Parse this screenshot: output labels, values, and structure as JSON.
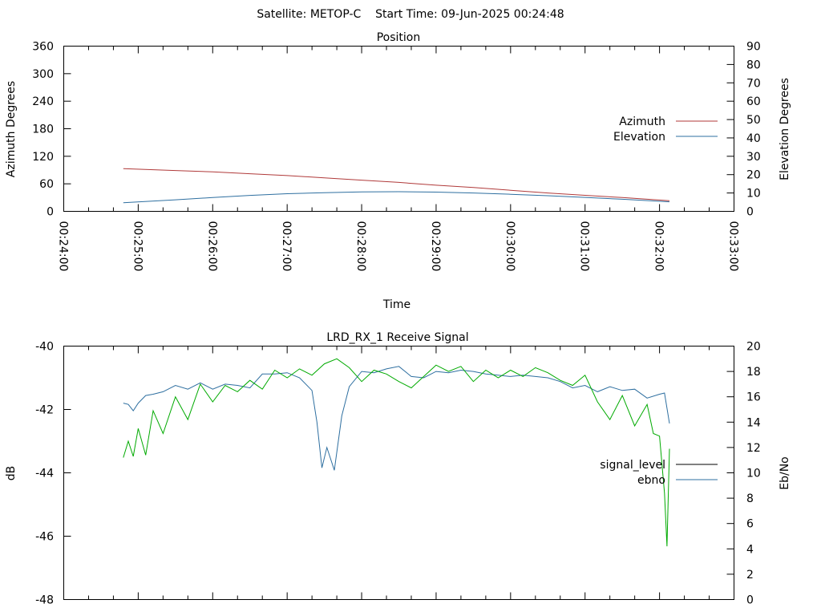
{
  "figure": {
    "title": "Satellite: METOP-C    Start Time: 09-Jun-2025 00:24:48"
  },
  "chart_data": [
    {
      "type": "line",
      "title": "Position",
      "xlabel": "Time",
      "ylabel": "Azimuth Degrees",
      "y2label": "Elevation Degrees",
      "xlim": [
        "00:24:00",
        "00:33:00"
      ],
      "ylim": [
        0,
        360
      ],
      "y2lim": [
        0,
        90
      ],
      "xticks": [
        "00:24:00",
        "00:25:00",
        "00:26:00",
        "00:27:00",
        "00:28:00",
        "00:29:00",
        "00:30:00",
        "00:31:00",
        "00:32:00",
        "00:33:00"
      ],
      "yticks": [
        0,
        60,
        120,
        180,
        240,
        300,
        360
      ],
      "y2ticks": [
        0,
        10,
        20,
        30,
        40,
        50,
        60,
        70,
        80,
        90
      ],
      "legend_position": "right",
      "series": [
        {
          "name": "Azimuth",
          "axis": "y",
          "color": "#b03a3a",
          "x": [
            "00:24:48",
            "00:25:30",
            "00:26:00",
            "00:26:30",
            "00:27:00",
            "00:27:30",
            "00:28:00",
            "00:28:30",
            "00:29:00",
            "00:29:30",
            "00:30:00",
            "00:30:30",
            "00:31:00",
            "00:31:30",
            "00:32:08"
          ],
          "y": [
            93,
            89,
            86,
            82,
            78,
            73,
            68,
            63,
            57,
            52,
            46,
            40,
            35,
            30,
            23
          ]
        },
        {
          "name": "Elevation",
          "axis": "y2",
          "color": "#2e6fa0",
          "x": [
            "00:24:48",
            "00:25:30",
            "00:26:00",
            "00:26:30",
            "00:27:00",
            "00:27:30",
            "00:28:00",
            "00:28:30",
            "00:29:00",
            "00:29:30",
            "00:30:00",
            "00:30:30",
            "00:31:00",
            "00:31:30",
            "00:32:08"
          ],
          "y": [
            4.7,
            6.3,
            7.5,
            8.7,
            9.6,
            10.2,
            10.6,
            10.7,
            10.5,
            10.0,
            9.3,
            8.5,
            7.6,
            6.6,
            5.2
          ]
        }
      ]
    },
    {
      "type": "line",
      "title": "LRD_RX_1 Receive Signal",
      "xlabel": "",
      "ylabel": "dB",
      "y2label": "Eb/No",
      "xlim": [
        "00:24:00",
        "00:33:00"
      ],
      "ylim": [
        -48,
        -40
      ],
      "y2lim": [
        0,
        20
      ],
      "yticks": [
        -48,
        -46,
        -44,
        -42,
        -40
      ],
      "y2ticks": [
        0,
        2,
        4,
        6,
        8,
        10,
        12,
        14,
        16,
        18,
        20
      ],
      "legend_position": "right",
      "series": [
        {
          "name": "signal_level",
          "axis": "y",
          "color": "#000000",
          "x": [],
          "y": []
        },
        {
          "name": "ebno",
          "axis": "y2",
          "color": "#2e6fa0",
          "x": [
            "00:24:48",
            "00:24:52",
            "00:24:56",
            "00:25:00",
            "00:25:06",
            "00:25:12",
            "00:25:20",
            "00:25:30",
            "00:25:40",
            "00:25:50",
            "00:26:00",
            "00:26:10",
            "00:26:20",
            "00:26:30",
            "00:26:40",
            "00:26:50",
            "00:27:00",
            "00:27:10",
            "00:27:20",
            "00:27:24",
            "00:27:28",
            "00:27:32",
            "00:27:38",
            "00:27:44",
            "00:27:50",
            "00:28:00",
            "00:28:10",
            "00:28:20",
            "00:28:30",
            "00:28:40",
            "00:28:50",
            "00:29:00",
            "00:29:10",
            "00:29:20",
            "00:29:30",
            "00:29:40",
            "00:29:50",
            "00:30:00",
            "00:30:10",
            "00:30:20",
            "00:30:30",
            "00:30:40",
            "00:30:50",
            "00:31:00",
            "00:31:10",
            "00:31:20",
            "00:31:30",
            "00:31:40",
            "00:31:50",
            "00:32:00",
            "00:32:04",
            "00:32:08"
          ],
          "y": [
            15.5,
            15.4,
            14.9,
            15.5,
            16.1,
            16.2,
            16.4,
            16.9,
            16.6,
            17.1,
            16.6,
            17.0,
            16.9,
            16.7,
            17.8,
            17.8,
            17.9,
            17.5,
            16.5,
            14.0,
            10.4,
            12.0,
            10.2,
            14.5,
            16.8,
            18.0,
            17.9,
            18.2,
            18.4,
            17.6,
            17.5,
            18.0,
            17.9,
            18.1,
            18.0,
            17.8,
            17.7,
            17.6,
            17.7,
            17.6,
            17.5,
            17.2,
            16.7,
            16.9,
            16.4,
            16.8,
            16.5,
            16.6,
            15.9,
            16.2,
            16.3,
            13.9
          ]
        },
        {
          "name": "",
          "axis": "y2",
          "color": "#00aa00",
          "x": [
            "00:24:48",
            "00:24:52",
            "00:24:56",
            "00:25:00",
            "00:25:06",
            "00:25:12",
            "00:25:20",
            "00:25:30",
            "00:25:40",
            "00:25:50",
            "00:26:00",
            "00:26:10",
            "00:26:20",
            "00:26:30",
            "00:26:40",
            "00:26:50",
            "00:27:00",
            "00:27:10",
            "00:27:20",
            "00:27:30",
            "00:27:40",
            "00:27:50",
            "00:28:00",
            "00:28:10",
            "00:28:20",
            "00:28:30",
            "00:28:40",
            "00:28:50",
            "00:29:00",
            "00:29:10",
            "00:29:20",
            "00:29:30",
            "00:29:40",
            "00:29:50",
            "00:30:00",
            "00:30:10",
            "00:30:20",
            "00:30:30",
            "00:30:40",
            "00:30:50",
            "00:31:00",
            "00:31:10",
            "00:31:20",
            "00:31:30",
            "00:31:40",
            "00:31:50",
            "00:31:55",
            "00:32:00",
            "00:32:04",
            "00:32:06",
            "00:32:08"
          ],
          "y": [
            11.2,
            12.5,
            11.3,
            13.5,
            11.4,
            14.9,
            13.1,
            16.0,
            14.2,
            17.0,
            15.6,
            16.9,
            16.4,
            17.3,
            16.6,
            18.1,
            17.5,
            18.2,
            17.7,
            18.6,
            19.0,
            18.3,
            17.2,
            18.1,
            17.8,
            17.2,
            16.7,
            17.6,
            18.5,
            18.0,
            18.4,
            17.2,
            18.1,
            17.5,
            18.1,
            17.6,
            18.3,
            17.9,
            17.3,
            16.9,
            17.7,
            15.6,
            14.2,
            16.1,
            13.7,
            15.4,
            13.1,
            12.9,
            8.4,
            4.2,
            11.9
          ]
        }
      ]
    }
  ]
}
